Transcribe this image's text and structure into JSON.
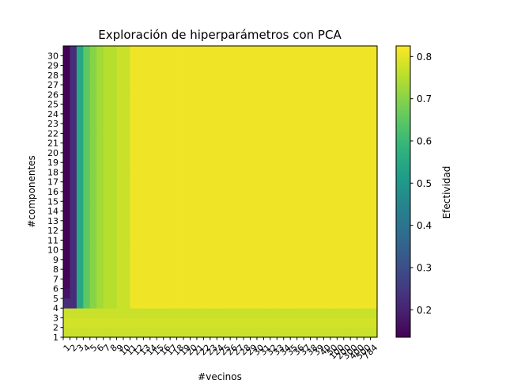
{
  "chart_data": {
    "type": "heatmap",
    "title": "Exploración de hiperparámetros con PCA",
    "xlabel": "#vecinos",
    "ylabel": "#componentes",
    "x_tick_labels": [
      "1",
      "2",
      "3",
      "4",
      "5",
      "6",
      "7",
      "8",
      "9",
      "10",
      "11",
      "12",
      "13",
      "14",
      "15",
      "16",
      "17",
      "18",
      "19",
      "20",
      "21",
      "22",
      "23",
      "24",
      "25",
      "26",
      "27",
      "28",
      "29",
      "30",
      "31",
      "32",
      "33",
      "34",
      "35",
      "36",
      "37",
      "38",
      "39",
      "40",
      "50",
      "100",
      "200",
      "300",
      "400",
      "500",
      "784"
    ],
    "y_tick_labels": [
      "1",
      "2",
      "3",
      "4",
      "5",
      "6",
      "7",
      "8",
      "9",
      "10",
      "11",
      "12",
      "13",
      "14",
      "15",
      "16",
      "17",
      "18",
      "19",
      "20",
      "21",
      "22",
      "23",
      "24",
      "25",
      "26",
      "27",
      "28",
      "29",
      "30"
    ],
    "colorbar": {
      "label": "Efectividad",
      "colormap": "viridis",
      "range": [
        0.135,
        0.825
      ],
      "ticks": [
        "0.2",
        "0.3",
        "0.4",
        "0.5",
        "0.6",
        "0.7",
        "0.8"
      ]
    },
    "value_summary": {
      "row_1_all_vecinos": 0.77,
      "row_2": 0.78,
      "row_3": 0.77,
      "vecinos_1_col": [
        0.77,
        0.78,
        0.77,
        0.22,
        0.17,
        0.15,
        0.14,
        0.14
      ],
      "vecinos_2_col": 0.22,
      "vecinos_3_col": 0.55,
      "vecinos_4_col": 0.65,
      "vecinos_5_col": 0.7,
      "vecinos_6_col": 0.73,
      "vecinos_7_8_col": 0.75,
      "vecinos_9_10_col": 0.77,
      "plateau": 0.81
    }
  }
}
